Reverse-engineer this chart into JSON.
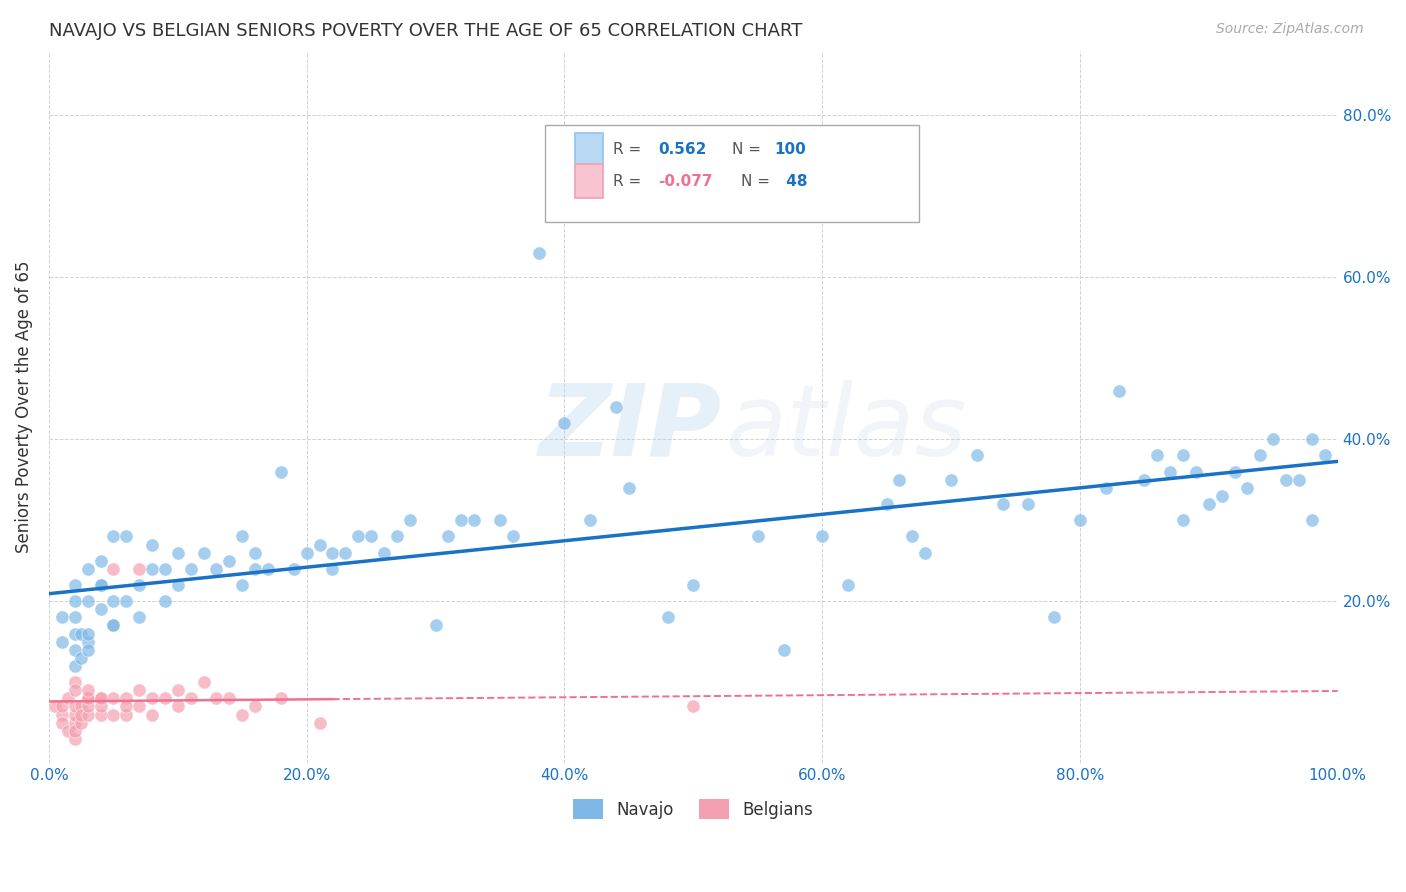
{
  "title": "NAVAJO VS BELGIAN SENIORS POVERTY OVER THE AGE OF 65 CORRELATION CHART",
  "source": "Source: ZipAtlas.com",
  "ylabel": "Seniors Poverty Over the Age of 65",
  "navajo_color": "#7EB8E8",
  "belgian_color": "#F4A0B0",
  "navajo_line_color": "#1A72C4",
  "belgian_line_color": "#F07090",
  "navajo_R": 0.562,
  "navajo_N": 100,
  "belgian_R": -0.077,
  "belgian_N": 48,
  "watermark_zip": "ZIP",
  "watermark_atlas": "atlas",
  "background_color": "#ffffff",
  "grid_color": "#cccccc",
  "title_color": "#333333",
  "source_color": "#aaaaaa",
  "navajo_x": [
    0.01,
    0.01,
    0.02,
    0.02,
    0.02,
    0.02,
    0.02,
    0.02,
    0.025,
    0.025,
    0.03,
    0.03,
    0.03,
    0.03,
    0.03,
    0.04,
    0.04,
    0.04,
    0.04,
    0.05,
    0.05,
    0.05,
    0.05,
    0.06,
    0.06,
    0.07,
    0.07,
    0.08,
    0.08,
    0.09,
    0.09,
    0.1,
    0.1,
    0.11,
    0.12,
    0.13,
    0.14,
    0.15,
    0.15,
    0.16,
    0.16,
    0.17,
    0.18,
    0.19,
    0.2,
    0.21,
    0.22,
    0.22,
    0.23,
    0.24,
    0.25,
    0.26,
    0.27,
    0.28,
    0.3,
    0.31,
    0.32,
    0.33,
    0.35,
    0.36,
    0.38,
    0.4,
    0.42,
    0.44,
    0.45,
    0.48,
    0.5,
    0.55,
    0.57,
    0.6,
    0.62,
    0.65,
    0.66,
    0.67,
    0.68,
    0.7,
    0.72,
    0.74,
    0.76,
    0.78,
    0.8,
    0.82,
    0.83,
    0.85,
    0.86,
    0.87,
    0.88,
    0.88,
    0.89,
    0.9,
    0.91,
    0.92,
    0.93,
    0.94,
    0.95,
    0.96,
    0.97,
    0.98,
    0.98,
    0.99
  ],
  "navajo_y": [
    0.15,
    0.18,
    0.16,
    0.14,
    0.12,
    0.18,
    0.2,
    0.22,
    0.13,
    0.16,
    0.2,
    0.24,
    0.15,
    0.16,
    0.14,
    0.22,
    0.19,
    0.22,
    0.25,
    0.17,
    0.2,
    0.28,
    0.17,
    0.2,
    0.28,
    0.22,
    0.18,
    0.24,
    0.27,
    0.2,
    0.24,
    0.22,
    0.26,
    0.24,
    0.26,
    0.24,
    0.25,
    0.22,
    0.28,
    0.24,
    0.26,
    0.24,
    0.36,
    0.24,
    0.26,
    0.27,
    0.24,
    0.26,
    0.26,
    0.28,
    0.28,
    0.26,
    0.28,
    0.3,
    0.17,
    0.28,
    0.3,
    0.3,
    0.3,
    0.28,
    0.63,
    0.42,
    0.3,
    0.44,
    0.34,
    0.18,
    0.22,
    0.28,
    0.14,
    0.28,
    0.22,
    0.32,
    0.35,
    0.28,
    0.26,
    0.35,
    0.38,
    0.32,
    0.32,
    0.18,
    0.3,
    0.34,
    0.46,
    0.35,
    0.38,
    0.36,
    0.38,
    0.3,
    0.36,
    0.32,
    0.33,
    0.36,
    0.34,
    0.38,
    0.4,
    0.35,
    0.35,
    0.3,
    0.4,
    0.38
  ],
  "belgian_x": [
    0.005,
    0.01,
    0.01,
    0.01,
    0.015,
    0.015,
    0.02,
    0.02,
    0.02,
    0.02,
    0.02,
    0.02,
    0.02,
    0.025,
    0.025,
    0.025,
    0.03,
    0.03,
    0.03,
    0.03,
    0.03,
    0.04,
    0.04,
    0.04,
    0.04,
    0.05,
    0.05,
    0.05,
    0.06,
    0.06,
    0.06,
    0.07,
    0.07,
    0.07,
    0.08,
    0.08,
    0.09,
    0.1,
    0.1,
    0.11,
    0.12,
    0.13,
    0.14,
    0.15,
    0.16,
    0.18,
    0.21,
    0.5
  ],
  "belgian_y": [
    0.07,
    0.06,
    0.05,
    0.07,
    0.04,
    0.08,
    0.05,
    0.03,
    0.06,
    0.07,
    0.1,
    0.04,
    0.09,
    0.07,
    0.05,
    0.06,
    0.08,
    0.06,
    0.07,
    0.08,
    0.09,
    0.08,
    0.06,
    0.07,
    0.08,
    0.08,
    0.06,
    0.24,
    0.08,
    0.06,
    0.07,
    0.24,
    0.07,
    0.09,
    0.08,
    0.06,
    0.08,
    0.07,
    0.09,
    0.08,
    0.1,
    0.08,
    0.08,
    0.06,
    0.07,
    0.08,
    0.05,
    0.07
  ],
  "xlim": [
    0.0,
    1.0
  ],
  "ylim": [
    0.0,
    0.88
  ],
  "xlabel_ticks": [
    "0.0%",
    "20.0%",
    "40.0%",
    "60.0%",
    "80.0%",
    "100.0%"
  ],
  "xlabel_vals": [
    0.0,
    0.2,
    0.4,
    0.6,
    0.8,
    1.0
  ],
  "ylabel_right_ticks": [
    "80.0%",
    "60.0%",
    "40.0%",
    "20.0%"
  ],
  "ylabel_right_vals": [
    0.8,
    0.6,
    0.4,
    0.2
  ]
}
